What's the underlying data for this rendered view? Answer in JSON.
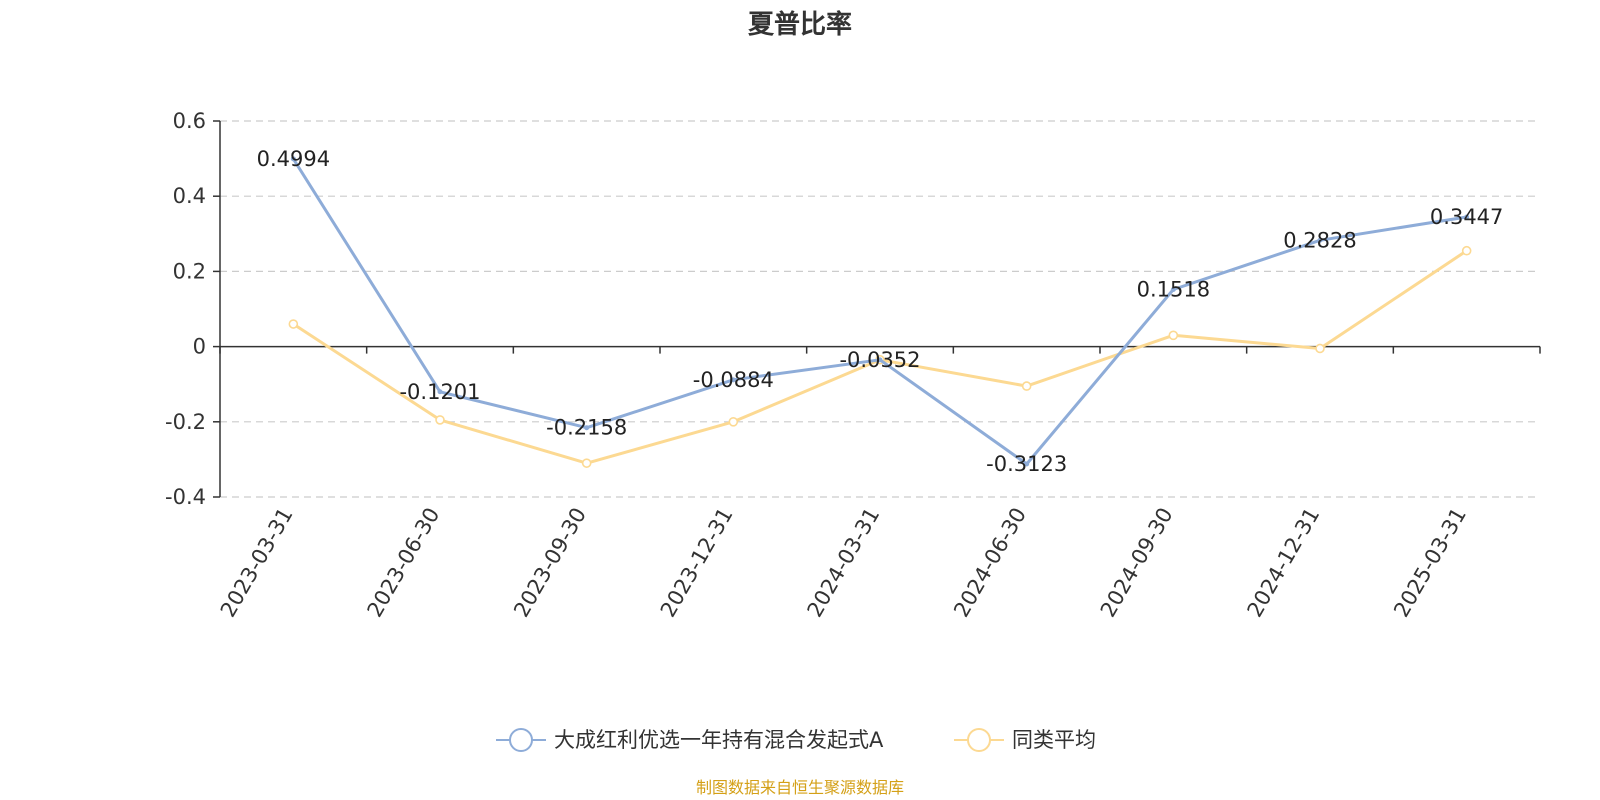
{
  "chart_data": {
    "type": "line",
    "title": "夏普比率",
    "categories": [
      "2023-03-31",
      "2023-06-30",
      "2023-09-30",
      "2023-12-31",
      "2024-03-31",
      "2024-06-30",
      "2024-09-30",
      "2024-12-31",
      "2025-03-31"
    ],
    "series": [
      {
        "name": "大成红利优选一年持有混合发起式A",
        "color": "#8eacd8",
        "values": [
          0.4994,
          -0.1201,
          -0.2158,
          -0.0884,
          -0.0352,
          -0.3123,
          0.1518,
          0.2828,
          0.3447
        ],
        "labels": [
          "0.4994",
          "-0.1201",
          "-0.2158",
          "-0.0884",
          "-0.0352",
          "-0.3123",
          "0.1518",
          "0.2828",
          "0.3447"
        ]
      },
      {
        "name": "同类平均",
        "color": "#fcd992",
        "values": [
          0.06,
          -0.195,
          -0.31,
          -0.2,
          -0.035,
          -0.105,
          0.03,
          -0.005,
          0.255
        ]
      }
    ],
    "yticks": [
      "0.6",
      "0.4",
      "0.2",
      "0",
      "-0.2",
      "-0.4"
    ],
    "ylim": [
      -0.4,
      0.6
    ],
    "grid": true,
    "legend_position": "bottom-center",
    "source": "制图数据来自恒生聚源数据库"
  }
}
